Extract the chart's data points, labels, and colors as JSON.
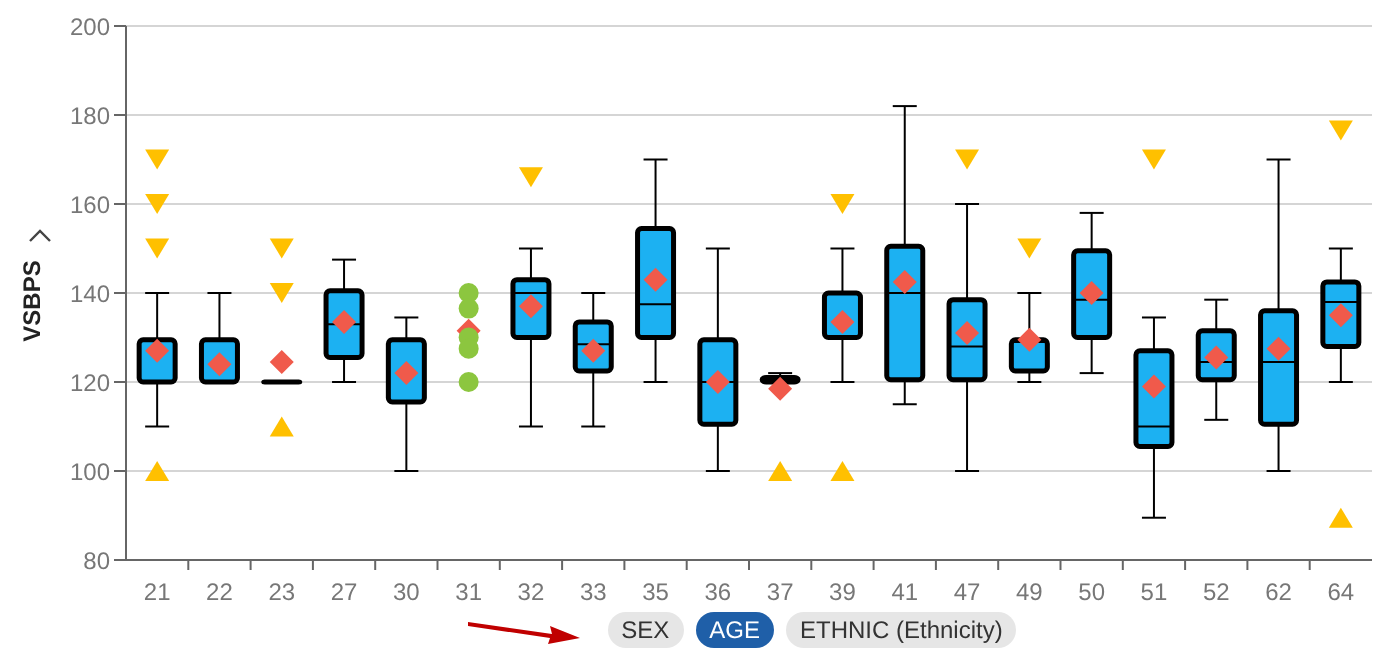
{
  "chart_data": {
    "type": "box",
    "ylabel": "VSBPS",
    "categories": [
      "21",
      "22",
      "23",
      "27",
      "30",
      "31",
      "32",
      "33",
      "35",
      "36",
      "37",
      "39",
      "41",
      "47",
      "49",
      "50",
      "51",
      "52",
      "62",
      "64"
    ],
    "ylim": [
      80,
      200
    ],
    "yticks": [
      80,
      100,
      120,
      140,
      160,
      180,
      200
    ],
    "grid": "y",
    "legend": false,
    "annotations": [
      "SEX",
      "AGE",
      "ETHNIC (Ethnicity)"
    ],
    "series": [
      {
        "type": "box",
        "color": "#1cb1f2",
        "boxes": [
          {
            "low": 110,
            "q1": 120,
            "median": 120,
            "q3": 129.5,
            "high": 140
          },
          {
            "low": 120,
            "q1": 120,
            "median": 120,
            "q3": 129.5,
            "high": 140
          },
          {
            "low": 120,
            "q1": 120,
            "median": 120,
            "q3": 120,
            "high": 120
          },
          {
            "low": 120,
            "q1": 125.5,
            "median": 133,
            "q3": 140.5,
            "high": 147.5
          },
          {
            "low": 100,
            "q1": 115.5,
            "median": 129.5,
            "q3": 129.5,
            "high": 134.5
          },
          null,
          {
            "low": 110,
            "q1": 130,
            "median": 140,
            "q3": 143,
            "high": 150
          },
          {
            "low": 110,
            "q1": 122.5,
            "median": 128.5,
            "q3": 133.5,
            "high": 140
          },
          {
            "low": 120,
            "q1": 130,
            "median": 137.5,
            "q3": 154.5,
            "high": 170
          },
          {
            "low": 100,
            "q1": 110.5,
            "median": 120,
            "q3": 129.5,
            "high": 150
          },
          {
            "low": 120,
            "q1": 120,
            "median": 120.5,
            "q3": 121,
            "high": 122
          },
          {
            "low": 120,
            "q1": 130,
            "median": 130,
            "q3": 140,
            "high": 150
          },
          {
            "low": 115,
            "q1": 120.5,
            "median": 140,
            "q3": 150.5,
            "high": 182
          },
          {
            "low": 100,
            "q1": 120.5,
            "median": 128,
            "q3": 138.5,
            "high": 160
          },
          {
            "low": 120,
            "q1": 122.5,
            "median": 129,
            "q3": 129.5,
            "high": 140
          },
          {
            "low": 122,
            "q1": 130,
            "median": 138.5,
            "q3": 149.5,
            "high": 158
          },
          {
            "low": 89.5,
            "q1": 105.5,
            "median": 110,
            "q3": 127,
            "high": 134.5
          },
          {
            "low": 111.5,
            "q1": 120.5,
            "median": 124.5,
            "q3": 131.5,
            "high": 138.5
          },
          {
            "low": 100,
            "q1": 110.5,
            "median": 124.5,
            "q3": 136,
            "high": 170
          },
          {
            "low": 120,
            "q1": 128,
            "median": 138,
            "q3": 142.5,
            "high": 150
          }
        ]
      },
      {
        "type": "scatter",
        "marker": "triangle",
        "color": "#ffc000",
        "x": [
          "21",
          "21",
          "21",
          "21",
          "23",
          "23",
          "23",
          "32",
          "37",
          "39",
          "39",
          "47",
          "49",
          "51",
          "64",
          "64"
        ],
        "values": [
          170,
          160,
          150,
          100,
          150,
          140,
          110,
          166,
          100,
          160,
          100,
          170,
          150,
          170,
          176.5,
          89.5
        ]
      },
      {
        "type": "scatter",
        "marker": "diamond",
        "color": "#f05a4b",
        "x": [
          "21",
          "22",
          "23",
          "27",
          "30",
          "31",
          "32",
          "33",
          "35",
          "36",
          "37",
          "39",
          "41",
          "47",
          "49",
          "50",
          "51",
          "52",
          "62",
          "64"
        ],
        "values": [
          127,
          124,
          124.5,
          133.5,
          122,
          131.5,
          137,
          127,
          143,
          120,
          118.5,
          133.5,
          142.5,
          131,
          129.5,
          140,
          119,
          125.5,
          127.5,
          135
        ]
      },
      {
        "type": "scatter",
        "marker": "circle",
        "color": "#8cc63f",
        "x": [
          "31",
          "31",
          "31",
          "31",
          "31"
        ],
        "values": [
          140,
          136.5,
          130,
          127.5,
          120
        ]
      }
    ]
  }
}
